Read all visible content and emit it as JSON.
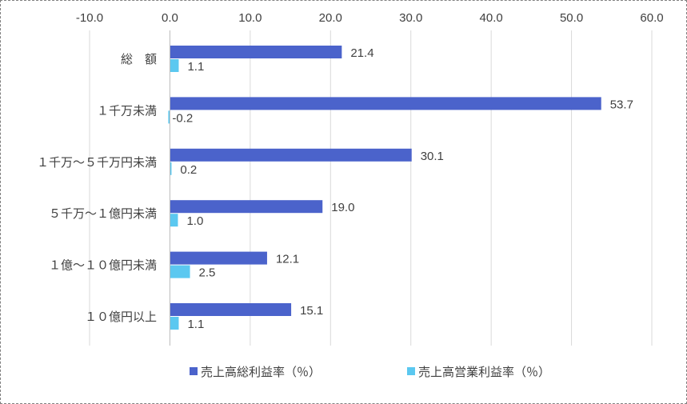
{
  "chart_data": {
    "type": "bar",
    "orientation": "horizontal",
    "title": "",
    "xlabel": "",
    "ylabel": "",
    "xlim": [
      -10,
      60
    ],
    "xticks": [
      -10,
      0,
      10,
      20,
      30,
      40,
      50,
      60
    ],
    "xtick_labels": [
      "-10.0",
      "0.0",
      "10.0",
      "20.0",
      "30.0",
      "40.0",
      "50.0",
      "60.0"
    ],
    "x_axis_position": "top",
    "grid": true,
    "legend_position": "bottom",
    "categories": [
      "総　額",
      "１千万未満",
      "１千万～５千万円未満",
      "５千万～１億円未満",
      "１億～１０億円未満",
      "１０億円以上"
    ],
    "series": [
      {
        "name": "売上高総利益率（％）",
        "color": "#4B63CB",
        "values": [
          21.4,
          53.7,
          30.1,
          19.0,
          12.1,
          15.1
        ],
        "labels": [
          "21.4",
          "53.7",
          "30.1",
          "19.0",
          "12.1",
          "15.1"
        ]
      },
      {
        "name": "売上高営業利益率（％）",
        "color": "#5BC8F0",
        "values": [
          1.1,
          -0.2,
          0.2,
          1.0,
          2.5,
          1.1
        ],
        "labels": [
          "1.1",
          "-0.2",
          "0.2",
          "1.0",
          "2.5",
          "1.1"
        ]
      }
    ]
  }
}
